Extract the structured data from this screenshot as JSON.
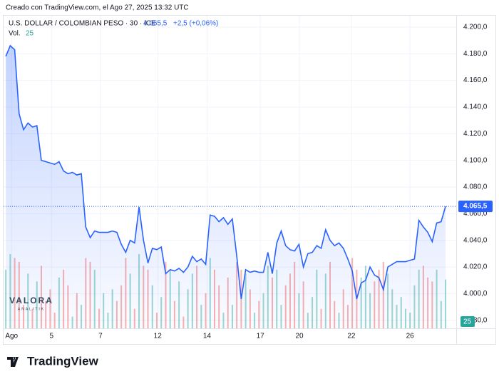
{
  "credit": "Creado con TradingView.com, el Ago 27, 2025 13:32 UTC",
  "brand": "TradingView",
  "watermark": {
    "name": "VALORA",
    "sub": "ANALITIK"
  },
  "chart_data": {
    "type": "line",
    "title": "U.S. DOLLAR / COLOMBIAN PESO · 30 · ICE",
    "last_label": "4.065,5",
    "change": "+2,5 (+0,06%)",
    "color": "#2962ff",
    "values": [
      4178,
      4186,
      4183,
      4135,
      4123,
      4128,
      4125,
      4126,
      4100,
      4099,
      4098,
      4097,
      4099,
      4092,
      4090,
      4091,
      4089,
      4090,
      4050,
      4042,
      4047,
      4046,
      4046,
      4046,
      4047,
      4046,
      4037,
      4031,
      4040,
      4038,
      4065,
      4040,
      4023,
      4034,
      4033,
      4035,
      4015,
      4018,
      4017,
      4019,
      4016,
      4020,
      4028,
      4024,
      4026,
      4022,
      4059,
      4058,
      4054,
      4057,
      4052,
      4056,
      4028,
      3996,
      4018,
      4016,
      4017,
      4016,
      4016,
      4031,
      4015,
      4038,
      4047,
      4036,
      4033,
      4032,
      4037,
      4020,
      4030,
      4031,
      4036,
      4034,
      4048,
      4040,
      4036,
      4038,
      4034,
      4026,
      4017,
      3996,
      4008,
      4010,
      4020,
      4014,
      4012,
      4003,
      4020,
      4022,
      4024,
      4024,
      4024,
      4025,
      4026,
      4055,
      4050,
      4046,
      4039,
      4053,
      4054,
      4065.5
    ],
    "volume": {
      "label": "Vol.",
      "up_color": "#26a69a",
      "down_color": "#ef5350",
      "lim": [
        0,
        160
      ],
      "values": [
        30,
        38,
        36,
        34,
        12,
        28,
        10,
        24,
        32,
        14,
        20,
        8,
        26,
        30,
        22,
        6,
        18,
        12,
        36,
        34,
        30,
        10,
        18,
        8,
        20,
        14,
        22,
        36,
        28,
        10,
        38,
        32,
        30,
        22,
        8,
        16,
        34,
        30,
        14,
        24,
        6,
        20,
        28,
        32,
        12,
        18,
        36,
        30,
        22,
        8,
        26,
        12,
        34,
        30,
        28,
        20,
        8,
        14,
        18,
        32,
        26,
        30,
        12,
        22,
        28,
        34,
        18,
        24,
        8,
        16,
        30,
        10,
        28,
        34,
        14,
        8,
        20,
        12,
        36,
        30,
        26,
        32,
        18,
        24,
        30,
        34,
        28,
        20,
        12,
        16,
        10,
        8,
        22,
        30,
        32,
        26,
        24,
        30,
        14,
        25
      ]
    },
    "ylim": [
      3974,
      4208.5
    ],
    "yticks": [
      {
        "value": 3980,
        "label": "3.980,0"
      },
      {
        "value": 4000,
        "label": "4.000,0"
      },
      {
        "value": 4020,
        "label": "4.020,0"
      },
      {
        "value": 4040,
        "label": "4.040,0"
      },
      {
        "value": 4060,
        "label": "4.060,0"
      },
      {
        "value": 4080,
        "label": "4.080,0"
      },
      {
        "value": 4100,
        "label": "4.100,0"
      },
      {
        "value": 4120,
        "label": "4.120,0"
      },
      {
        "value": 4140,
        "label": "4.140,0"
      },
      {
        "value": 4160,
        "label": "4.160,0"
      },
      {
        "value": 4180,
        "label": "4.180,0"
      },
      {
        "value": 4200,
        "label": "4.200,0"
      }
    ],
    "xlim": [
      -0.5,
      101.4
    ],
    "xticks": [
      {
        "value": 1.3,
        "label": "Ago"
      },
      {
        "value": 10.3,
        "label": "5"
      },
      {
        "value": 21.3,
        "label": "7"
      },
      {
        "value": 34.2,
        "label": "12"
      },
      {
        "value": 45.3,
        "label": "14"
      },
      {
        "value": 57.3,
        "label": "17"
      },
      {
        "value": 66.1,
        "label": "20"
      },
      {
        "value": 77.8,
        "label": "22"
      },
      {
        "value": 91,
        "label": "26"
      }
    ],
    "grid": true
  }
}
